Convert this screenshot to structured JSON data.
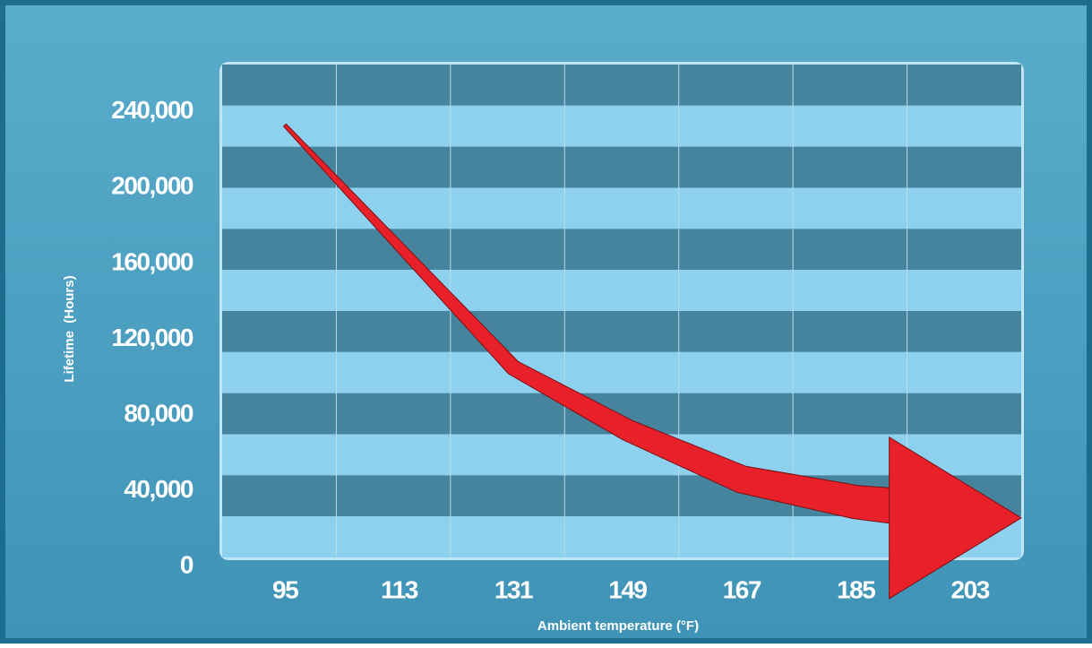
{
  "chart_data": {
    "type": "line",
    "x_label": "Ambient temperature (°F)",
    "y_label": "Lifetime  (Hours)",
    "categories": [
      "95",
      "113",
      "131",
      "149",
      "167",
      "185",
      "203"
    ],
    "series": [
      {
        "name": "Lifetime",
        "color": "#e8202a",
        "values": [
          233000,
          169000,
          105000,
          72000,
          46000,
          34000,
          28000
        ]
      }
    ],
    "ylim": [
      0,
      265000
    ],
    "yticks": [
      0,
      {
        "value": 40000,
        "label": "40,000"
      },
      {
        "value": 80000,
        "label": "80,000"
      },
      {
        "value": 120000,
        "label": "120,000"
      },
      {
        "value": 160000,
        "label": "160,000"
      },
      {
        "value": 200000,
        "label": "200,000"
      },
      {
        "value": 240000,
        "label": "240,000"
      }
    ],
    "grid": true
  }
}
